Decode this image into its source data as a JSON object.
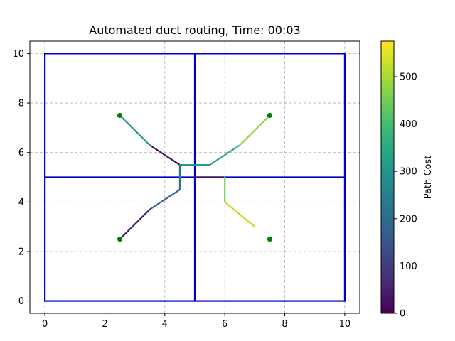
{
  "chart_data": {
    "type": "line",
    "title": "Automated duct routing, Time: 00:03",
    "xlabel": "",
    "ylabel": "",
    "xlim": [
      -0.5,
      10.5
    ],
    "ylim": [
      -0.5,
      10.5
    ],
    "xticks": [
      "0",
      "2",
      "4",
      "6",
      "8",
      "10"
    ],
    "yticks": [
      "0",
      "2",
      "4",
      "6",
      "8",
      "10"
    ],
    "grid": true,
    "grid_style": "dashed",
    "room_color": "#0000cc",
    "rooms": [
      {
        "x0": 0,
        "y0": 0,
        "x1": 10,
        "y1": 10
      }
    ],
    "walls": [
      {
        "x": [
          5,
          5
        ],
        "y": [
          0,
          10
        ]
      },
      {
        "x": [
          0,
          10
        ],
        "y": [
          5,
          5
        ]
      }
    ],
    "endpoints_color": "#008000",
    "endpoints": [
      {
        "x": 2.5,
        "y": 7.5
      },
      {
        "x": 7.5,
        "y": 7.5
      },
      {
        "x": 2.5,
        "y": 2.5
      },
      {
        "x": 7.5,
        "y": 2.5
      }
    ],
    "duct_segments": [
      {
        "x": [
          5.0,
          6.0
        ],
        "y": [
          5.0,
          5.0
        ],
        "cost": 10
      },
      {
        "x": [
          4.5,
          3.5
        ],
        "y": [
          5.5,
          6.3
        ],
        "cost": 20
      },
      {
        "x": [
          3.5,
          2.5
        ],
        "y": [
          6.3,
          7.5
        ],
        "cost": 300
      },
      {
        "x": [
          4.5,
          5.5
        ],
        "y": [
          5.5,
          5.5
        ],
        "cost": 310
      },
      {
        "x": [
          4.5,
          4.5
        ],
        "y": [
          5.5,
          4.5
        ],
        "cost": 230
      },
      {
        "x": [
          5.5,
          6.5
        ],
        "y": [
          5.5,
          6.3
        ],
        "cost": 350
      },
      {
        "x": [
          6.5,
          7.5
        ],
        "y": [
          6.3,
          7.5
        ],
        "cost": 480
      },
      {
        "x": [
          4.5,
          3.5
        ],
        "y": [
          4.5,
          3.7
        ],
        "cost": 170
      },
      {
        "x": [
          3.5,
          2.5
        ],
        "y": [
          3.7,
          2.5
        ],
        "cost": 40
      },
      {
        "x": [
          6.0,
          6.0
        ],
        "y": [
          5.0,
          4.0
        ],
        "cost": 450
      },
      {
        "x": [
          6.0,
          7.0
        ],
        "y": [
          4.0,
          3.0
        ],
        "cost": 520
      }
    ],
    "colorbar": {
      "label": "Path Cost",
      "min": 0,
      "max": 575,
      "ticks": [
        "0",
        "100",
        "200",
        "300",
        "400",
        "500"
      ],
      "colormap": "viridis"
    }
  }
}
